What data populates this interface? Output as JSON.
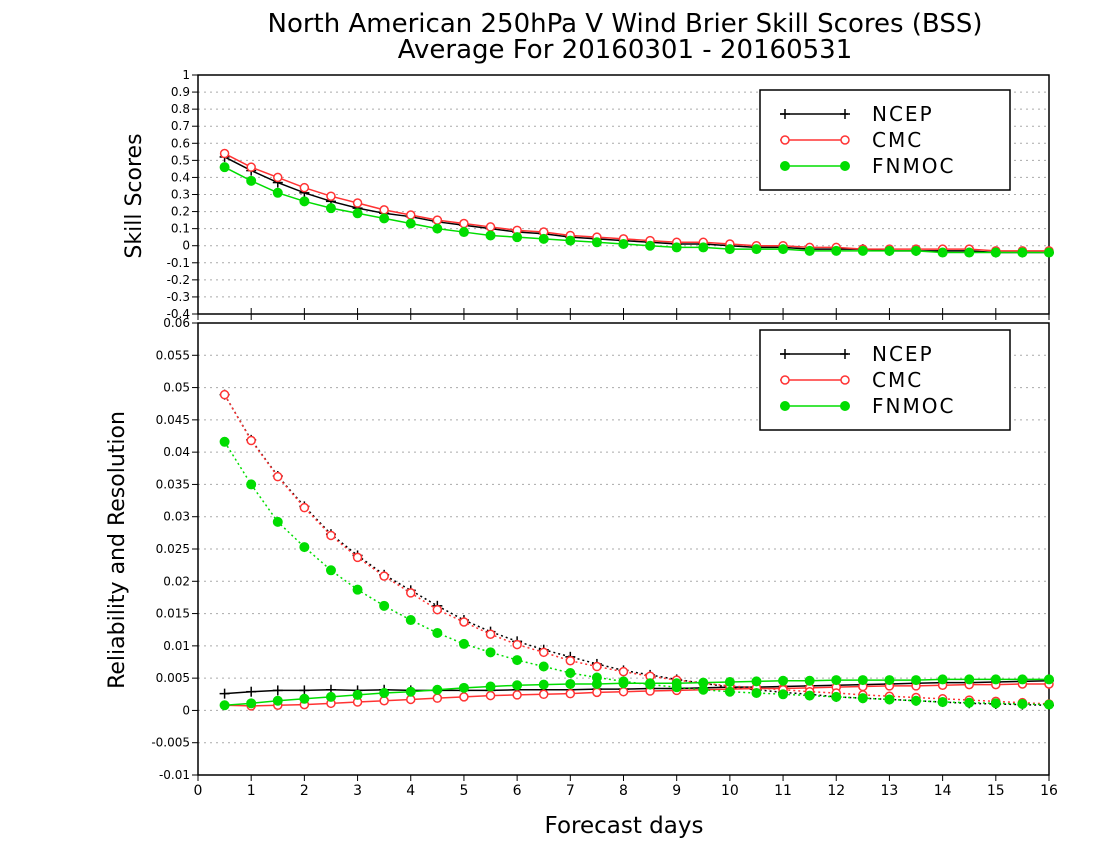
{
  "title": "North American 250hPa V Wind Brier Skill Scores (BSS)",
  "subtitle": "Average For 20160301 - 20160531",
  "colors": {
    "NCEP": "#000000",
    "CMC": "#ff3333",
    "FNMOC": "#00dd00"
  },
  "chart_data": [
    {
      "type": "line",
      "ylabel": "Skill Scores",
      "xlabel": "",
      "xlim": [
        0,
        16
      ],
      "ylim": [
        -0.4,
        1
      ],
      "yticks": [
        "-0.4",
        "-0.3",
        "-0.2",
        "-0.1",
        "0",
        "0.1",
        "0.2",
        "0.3",
        "0.4",
        "0.5",
        "0.6",
        "0.7",
        "0.8",
        "0.9",
        "1"
      ],
      "grid": true,
      "legend_position": "top-right",
      "x": [
        0.5,
        1,
        1.5,
        2,
        2.5,
        3,
        3.5,
        4,
        4.5,
        5,
        5.5,
        6,
        6.5,
        7,
        7.5,
        8,
        8.5,
        9,
        9.5,
        10,
        10.5,
        11,
        11.5,
        12,
        12.5,
        13,
        13.5,
        14,
        14.5,
        15,
        15.5,
        16
      ],
      "series": [
        {
          "name": "NCEP",
          "marker": "plus",
          "values": [
            0.52,
            0.44,
            0.37,
            0.31,
            0.26,
            0.22,
            0.19,
            0.17,
            0.14,
            0.12,
            0.1,
            0.08,
            0.07,
            0.05,
            0.04,
            0.03,
            0.02,
            0.01,
            0.01,
            0.0,
            -0.01,
            -0.01,
            -0.02,
            -0.02,
            -0.02,
            -0.03,
            -0.03,
            -0.03,
            -0.03,
            -0.04,
            -0.04,
            -0.04
          ]
        },
        {
          "name": "CMC",
          "marker": "open-circle",
          "values": [
            0.54,
            0.46,
            0.4,
            0.34,
            0.29,
            0.25,
            0.21,
            0.18,
            0.15,
            0.13,
            0.11,
            0.09,
            0.08,
            0.06,
            0.05,
            0.04,
            0.03,
            0.02,
            0.02,
            0.01,
            0.0,
            0.0,
            -0.01,
            -0.01,
            -0.02,
            -0.02,
            -0.02,
            -0.02,
            -0.02,
            -0.03,
            -0.03,
            -0.03
          ]
        },
        {
          "name": "FNMOC",
          "marker": "filled-circle",
          "values": [
            0.46,
            0.38,
            0.31,
            0.26,
            0.22,
            0.19,
            0.16,
            0.13,
            0.1,
            0.08,
            0.06,
            0.05,
            0.04,
            0.03,
            0.02,
            0.01,
            0.0,
            -0.01,
            -0.01,
            -0.02,
            -0.02,
            -0.02,
            -0.03,
            -0.03,
            -0.03,
            -0.03,
            -0.03,
            -0.04,
            -0.04,
            -0.04,
            -0.04,
            -0.04
          ]
        }
      ]
    },
    {
      "type": "line",
      "ylabel": "Reliability and Resolution",
      "xlabel": "Forecast days",
      "xlim": [
        0,
        16
      ],
      "ylim": [
        -0.01,
        0.06
      ],
      "yticks": [
        "-0.01",
        "-0.005",
        "0",
        "0.005",
        "0.01",
        "0.015",
        "0.02",
        "0.025",
        "0.03",
        "0.035",
        "0.04",
        "0.045",
        "0.05",
        "0.055",
        "0.06"
      ],
      "xticks": [
        "0",
        "1",
        "2",
        "3",
        "4",
        "5",
        "6",
        "7",
        "8",
        "9",
        "10",
        "11",
        "12",
        "13",
        "14",
        "15",
        "16"
      ],
      "grid": true,
      "legend_position": "top-right",
      "x": [
        0.5,
        1,
        1.5,
        2,
        2.5,
        3,
        3.5,
        4,
        4.5,
        5,
        5.5,
        6,
        6.5,
        7,
        7.5,
        8,
        8.5,
        9,
        9.5,
        10,
        10.5,
        11,
        11.5,
        12,
        12.5,
        13,
        13.5,
        14,
        14.5,
        15,
        15.5,
        16
      ],
      "series": [
        {
          "name": "NCEP",
          "component": "reliability",
          "style": "solid",
          "marker": "plus",
          "values": [
            0.0026,
            0.0029,
            0.0031,
            0.0031,
            0.0032,
            0.0031,
            0.0032,
            0.0031,
            0.0031,
            0.0031,
            0.0031,
            0.0032,
            0.0032,
            0.0032,
            0.0033,
            0.0033,
            0.0034,
            0.0034,
            0.0035,
            0.0036,
            0.0036,
            0.0037,
            0.0038,
            0.0039,
            0.004,
            0.0041,
            0.0042,
            0.0043,
            0.0043,
            0.0044,
            0.0045,
            0.0046
          ]
        },
        {
          "name": "NCEP",
          "component": "resolution",
          "style": "dotted",
          "marker": "plus",
          "values": [
            0.0489,
            0.0419,
            0.0363,
            0.0316,
            0.0273,
            0.024,
            0.021,
            0.0186,
            0.0162,
            0.014,
            0.0122,
            0.0107,
            0.0094,
            0.0083,
            0.0072,
            0.0062,
            0.0055,
            0.0048,
            0.0042,
            0.0036,
            0.0032,
            0.0028,
            0.0025,
            0.0021,
            0.0019,
            0.0017,
            0.0015,
            0.0013,
            0.0011,
            0.001,
            0.0009,
            0.0008
          ]
        },
        {
          "name": "CMC",
          "component": "reliability",
          "style": "solid",
          "marker": "open-circle",
          "values": [
            0.0008,
            0.0007,
            0.0008,
            0.0009,
            0.0011,
            0.0013,
            0.0015,
            0.0017,
            0.0019,
            0.0021,
            0.0023,
            0.0024,
            0.0025,
            0.0026,
            0.0028,
            0.0029,
            0.003,
            0.0031,
            0.0032,
            0.0033,
            0.0034,
            0.0034,
            0.0035,
            0.0036,
            0.0037,
            0.0038,
            0.0038,
            0.0039,
            0.004,
            0.004,
            0.0041,
            0.0041
          ]
        },
        {
          "name": "CMC",
          "component": "resolution",
          "style": "dotted",
          "marker": "open-circle",
          "values": [
            0.0489,
            0.0418,
            0.0362,
            0.0314,
            0.0271,
            0.0237,
            0.0208,
            0.0182,
            0.0156,
            0.0137,
            0.0118,
            0.0102,
            0.009,
            0.0077,
            0.0068,
            0.006,
            0.0053,
            0.0047,
            0.0042,
            0.0038,
            0.0035,
            0.0032,
            0.0029,
            0.0027,
            0.0024,
            0.0022,
            0.002,
            0.0018,
            0.0016,
            0.0014,
            0.0012,
            0.001
          ]
        },
        {
          "name": "FNMOC",
          "component": "reliability",
          "style": "solid",
          "marker": "filled-circle",
          "values": [
            0.0008,
            0.0011,
            0.0015,
            0.0018,
            0.0021,
            0.0024,
            0.0027,
            0.0029,
            0.0032,
            0.0035,
            0.0037,
            0.0039,
            0.004,
            0.0041,
            0.0041,
            0.0042,
            0.0042,
            0.0042,
            0.0043,
            0.0044,
            0.0045,
            0.0046,
            0.0046,
            0.0047,
            0.0047,
            0.0047,
            0.0047,
            0.0048,
            0.0048,
            0.0048,
            0.0048,
            0.0048
          ]
        },
        {
          "name": "FNMOC",
          "component": "resolution",
          "style": "dotted",
          "marker": "filled-circle",
          "values": [
            0.0416,
            0.035,
            0.0292,
            0.0253,
            0.0217,
            0.0187,
            0.0162,
            0.014,
            0.012,
            0.0103,
            0.009,
            0.0078,
            0.0068,
            0.0058,
            0.0051,
            0.0045,
            0.004,
            0.0036,
            0.0032,
            0.0029,
            0.0027,
            0.0025,
            0.0023,
            0.0021,
            0.0019,
            0.0017,
            0.0015,
            0.0013,
            0.0012,
            0.0011,
            0.001,
            0.0009
          ]
        }
      ]
    }
  ]
}
